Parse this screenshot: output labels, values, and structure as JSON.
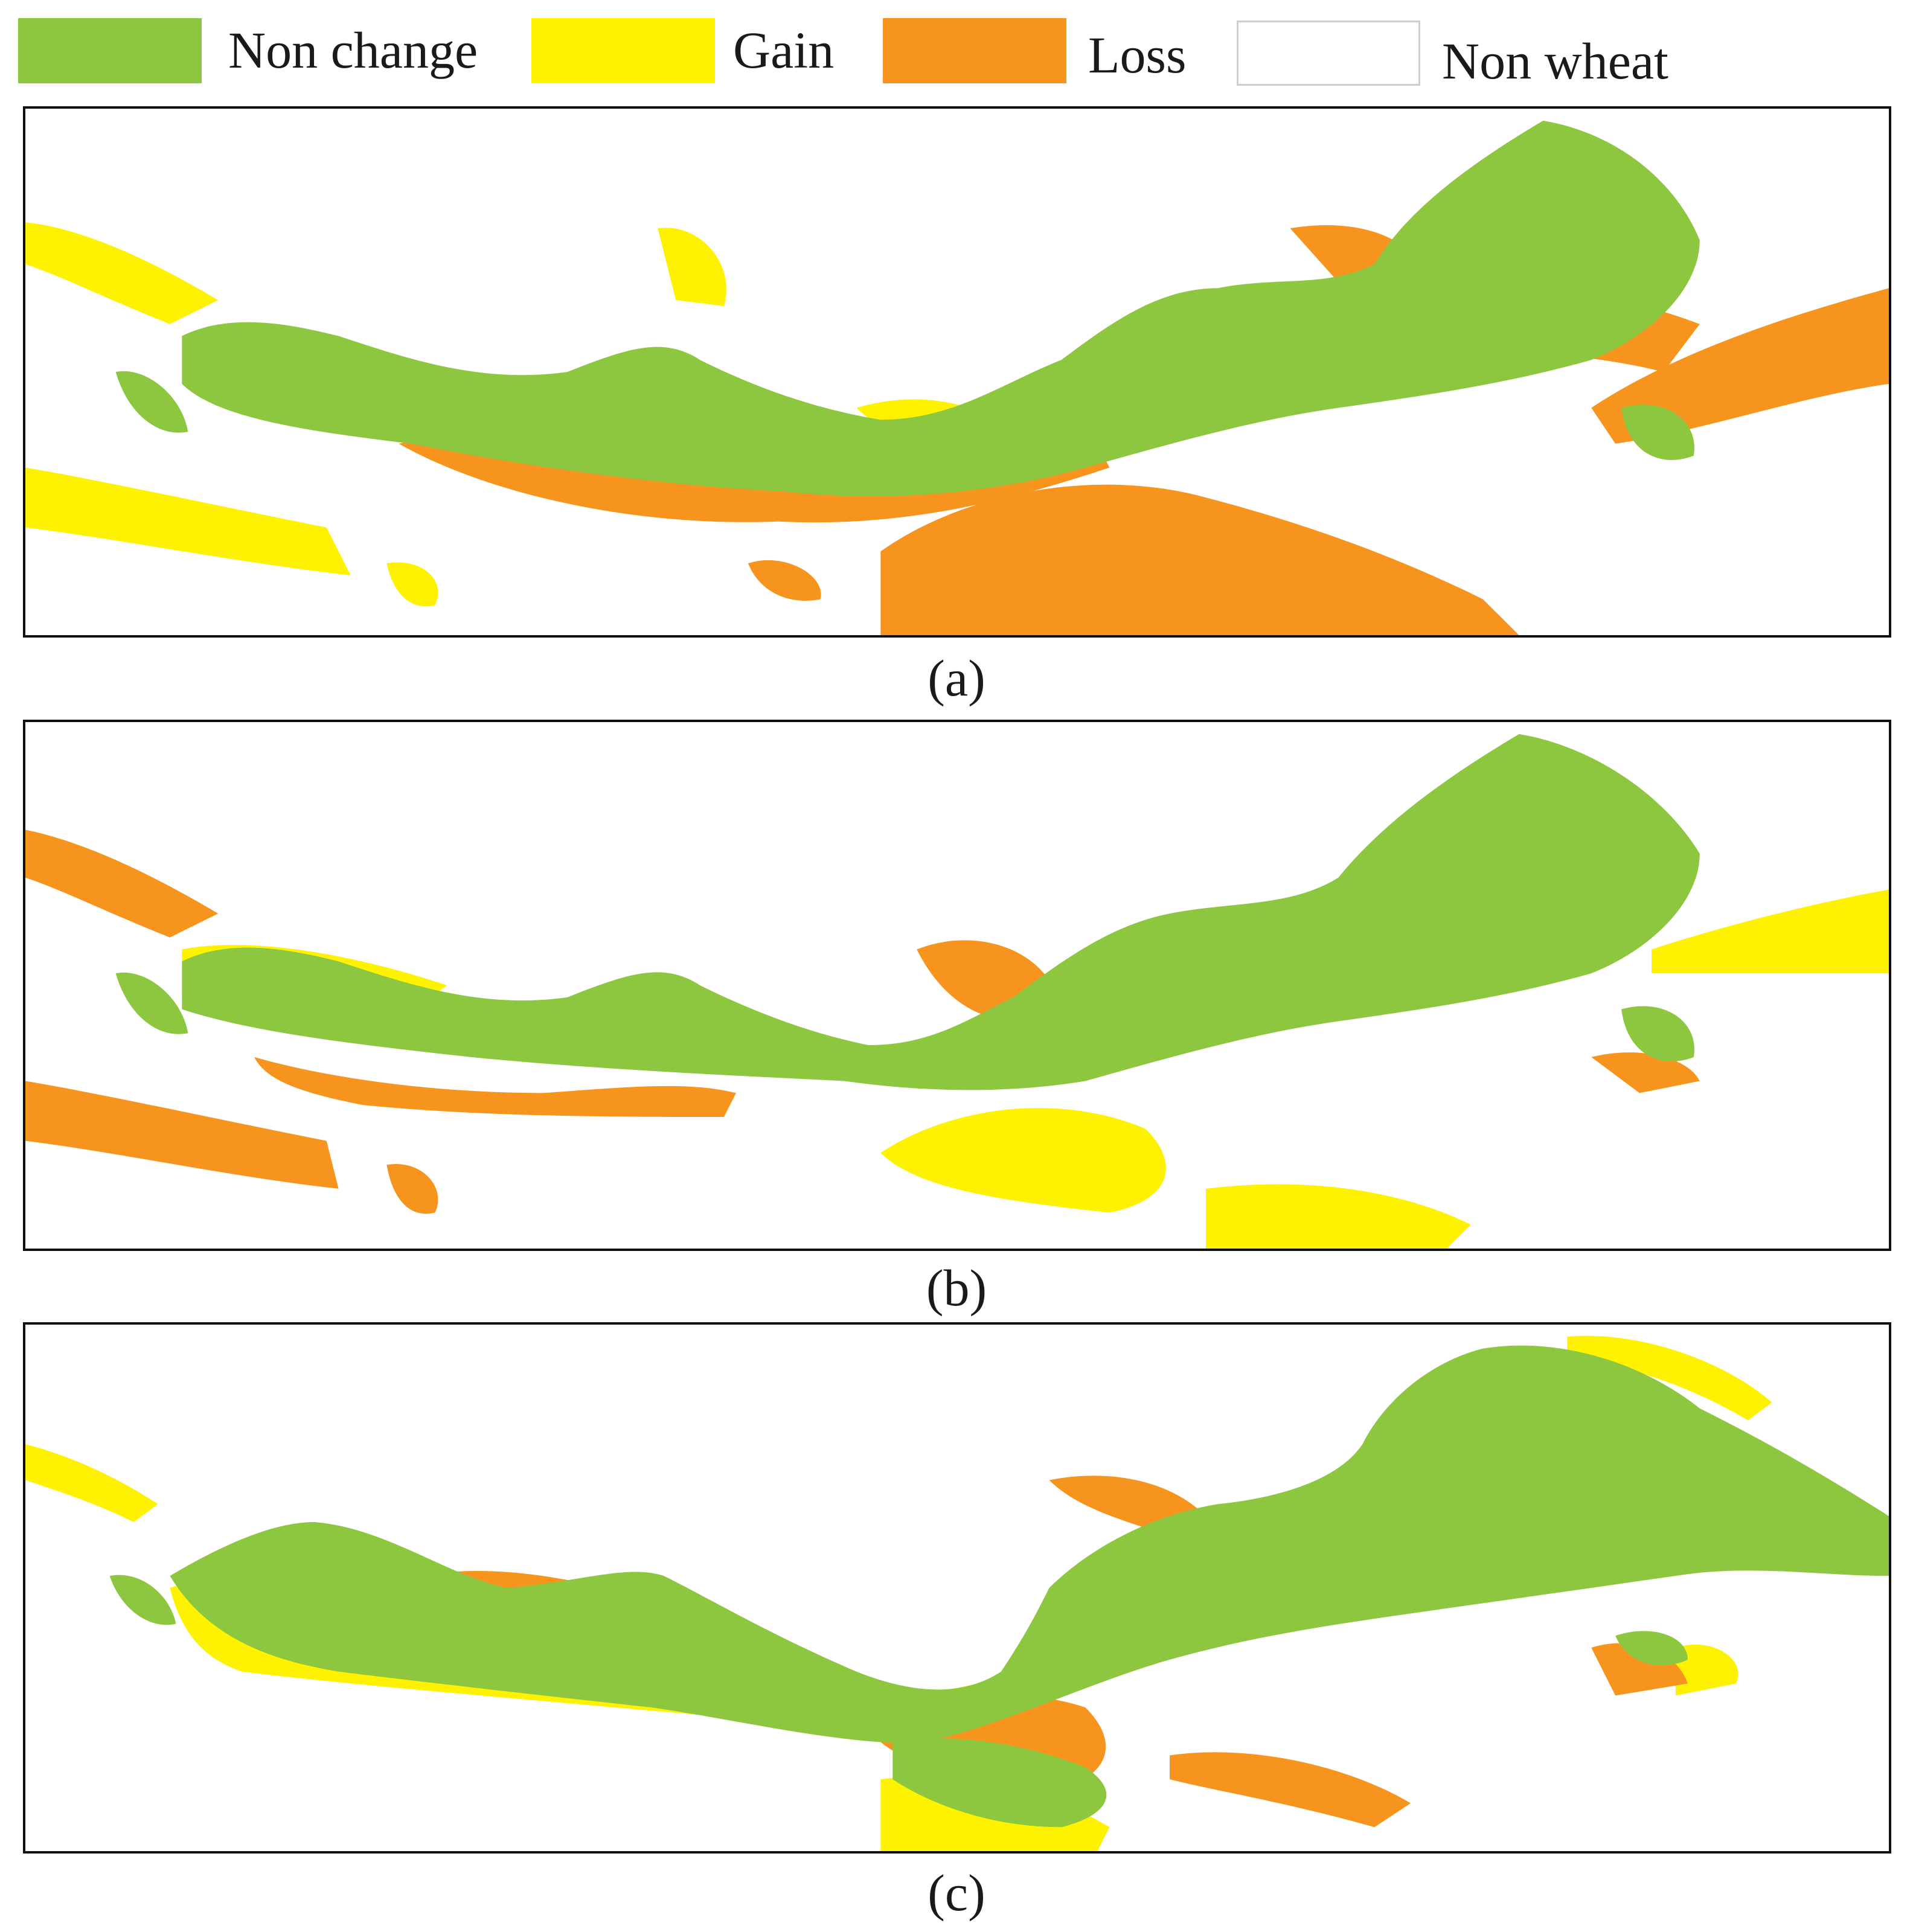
{
  "legend": {
    "items": [
      {
        "label": "Non change",
        "color": "#8dc63f"
      },
      {
        "label": "Gain",
        "color": "#fff200"
      },
      {
        "label": "Loss",
        "color": "#f7941d"
      },
      {
        "label": "Non wheat",
        "color": "#ffffff"
      }
    ]
  },
  "panels": [
    {
      "caption": "(a)"
    },
    {
      "caption": "(b)"
    },
    {
      "caption": "(c)"
    }
  ]
}
